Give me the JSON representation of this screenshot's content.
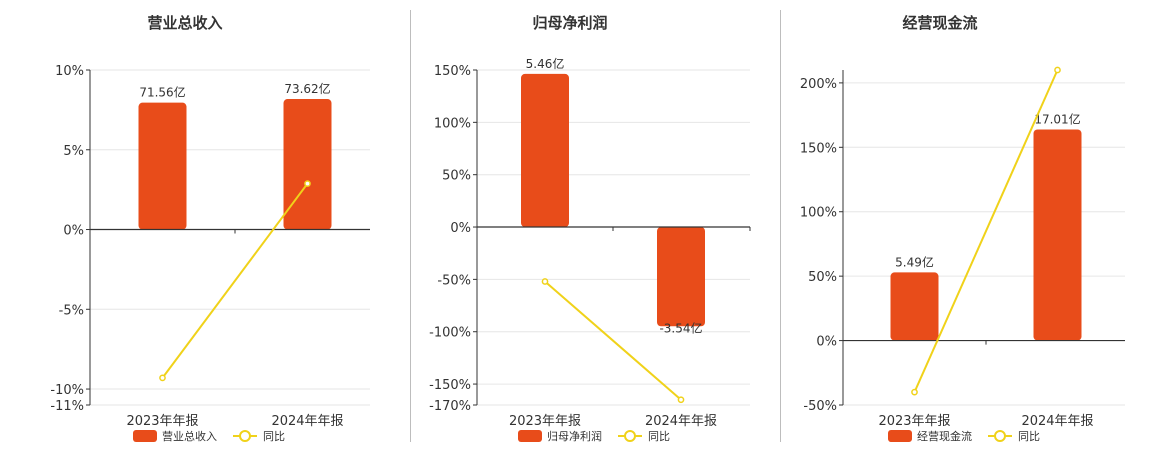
{
  "colors": {
    "bar": "#e84c1a",
    "line": "#f0d21a",
    "grid": "#e6e6e6",
    "axis": "#333333"
  },
  "chart_data": [
    {
      "type": "bar",
      "title": "营业总收入",
      "categories": [
        "2023年年报",
        "2024年年报"
      ],
      "bar_series": {
        "name": "营业总收入",
        "values": [
          71.56,
          73.62
        ],
        "labels": [
          "71.56亿",
          "73.62亿"
        ]
      },
      "line_series": {
        "name": "同比",
        "values": [
          -9.3,
          2.88
        ]
      },
      "ytick_labels": [
        "10%",
        "5%",
        "0%",
        "-5%",
        "-10%",
        "-11%"
      ],
      "ylim": [
        -11,
        10
      ],
      "bar_axis_max": 90,
      "grid": true,
      "legend_position": "bottom"
    },
    {
      "type": "bar",
      "title": "归母净利润",
      "categories": [
        "2023年年报",
        "2024年年报"
      ],
      "bar_series": {
        "name": "归母净利润",
        "values": [
          5.46,
          -3.54
        ],
        "labels": [
          "5.46亿",
          "-3.54亿"
        ]
      },
      "line_series": {
        "name": "同比",
        "values": [
          -52,
          -165
        ]
      },
      "ytick_labels": [
        "150%",
        "100%",
        "50%",
        "0%",
        "-50%",
        "-100%",
        "-150%",
        "-170%"
      ],
      "ylim": [
        -170,
        150
      ],
      "bar_axis_max": 5.6,
      "grid": true,
      "legend_position": "bottom"
    },
    {
      "type": "bar",
      "title": "经营现金流",
      "categories": [
        "2023年年报",
        "2024年年报"
      ],
      "bar_series": {
        "name": "经营现金流",
        "values": [
          5.49,
          17.01
        ],
        "labels": [
          "5.49亿",
          "17.01亿"
        ]
      },
      "line_series": {
        "name": "同比",
        "values": [
          -40,
          210
        ]
      },
      "ytick_labels": [
        "200%",
        "150%",
        "100%",
        "50%",
        "0%",
        "-50%"
      ],
      "ylim": [
        -50,
        210
      ],
      "bar_axis_max": 21.8,
      "grid": true,
      "legend_position": "bottom"
    }
  ]
}
